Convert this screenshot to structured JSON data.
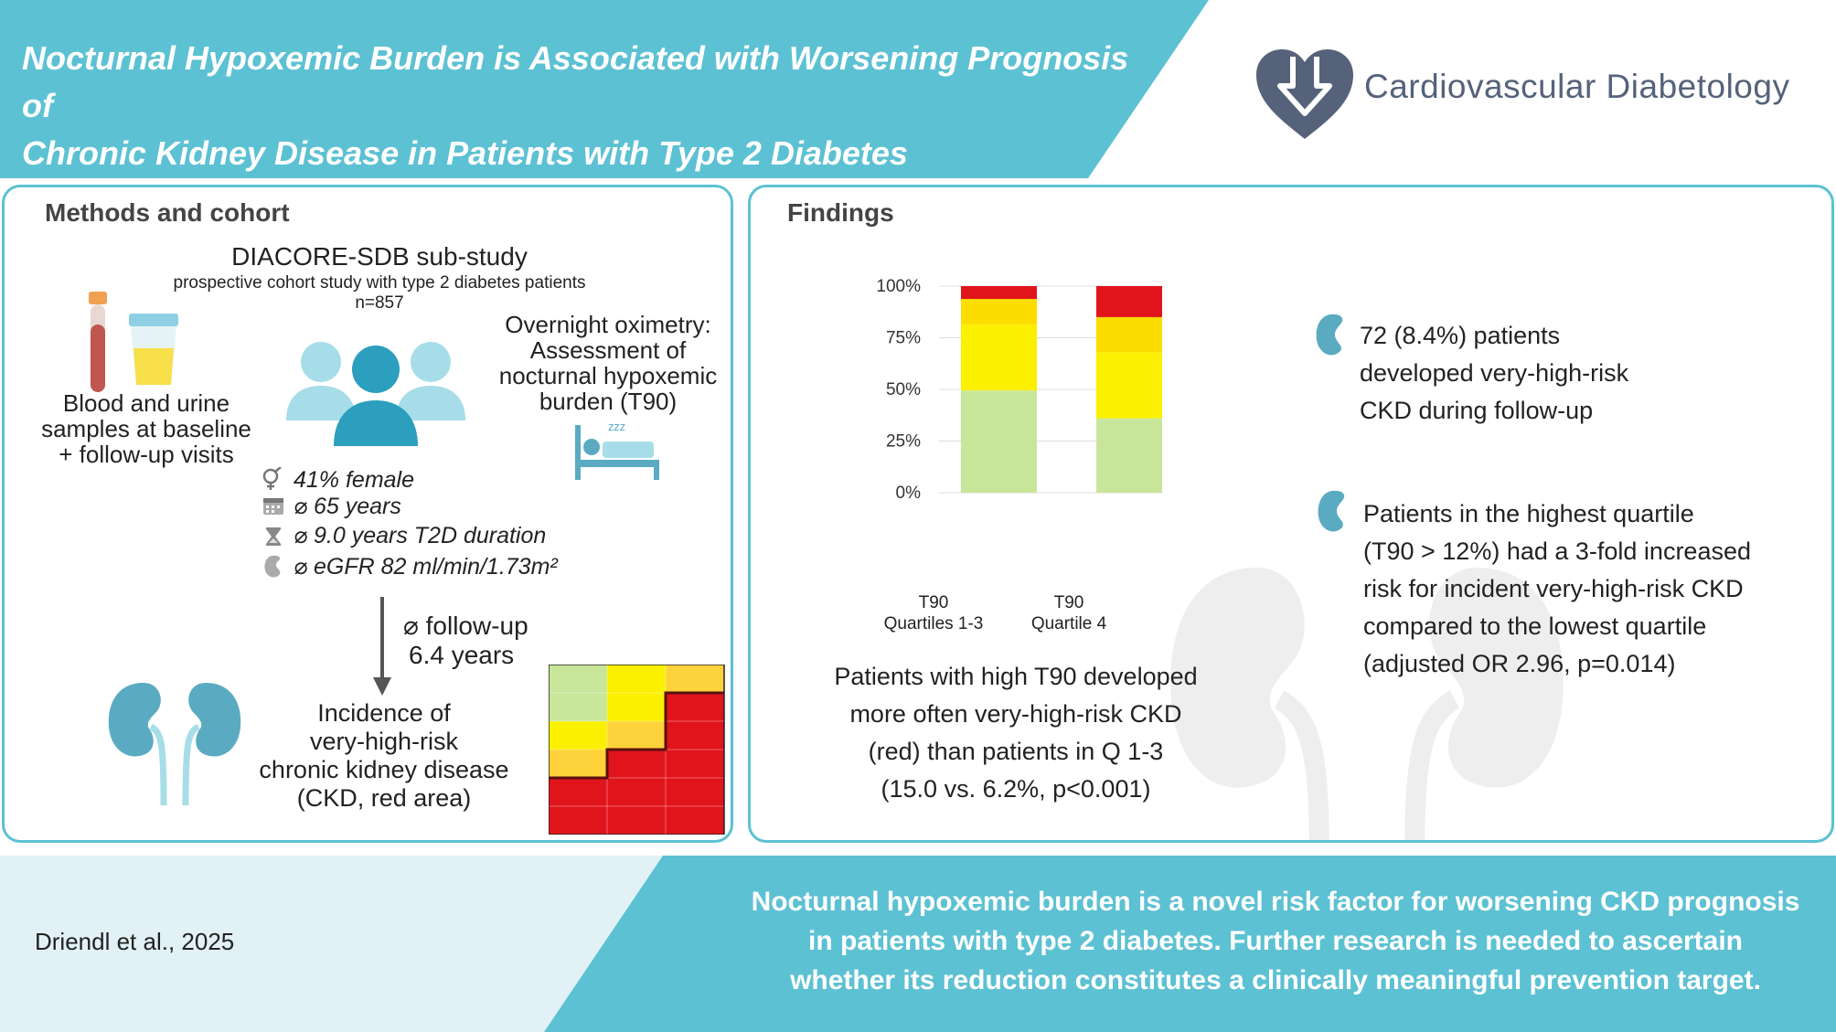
{
  "header": {
    "title_line1": "Nocturnal Hypoxemic Burden is Associated with Worsening Prognosis of",
    "title_line2": "Chronic Kidney Disease in Patients with Type 2 Diabetes",
    "journal": "Cardiovascular Diabetology"
  },
  "methods": {
    "heading": "Methods and cohort",
    "study_name": "DIACORE-SDB sub-study",
    "study_desc": "prospective cohort study with type 2 diabetes patients",
    "n": "n=857",
    "samples": [
      "Blood and urine",
      "samples at baseline",
      "+ follow-up visits"
    ],
    "oximetry": [
      "Overnight oximetry:",
      "Assessment of",
      "nocturnal hypoxemic",
      "burden (T90)"
    ],
    "stats": [
      "41% female",
      "⌀  65 years",
      "⌀ 9.0 years T2D duration",
      "⌀ eGFR 82 ml/min/1.73m²"
    ],
    "followup": [
      "⌀ follow-up",
      "6.4 years"
    ],
    "incidence": [
      "Incidence of",
      "very-high-risk",
      "chronic kidney disease",
      "(CKD, red area)"
    ]
  },
  "findings": {
    "heading": "Findings",
    "chart_caption": [
      "Patients with high T90 developed",
      "more often very-high-risk CKD",
      "(red) than patients in Q 1-3",
      "(15.0 vs. 6.2%, p<0.001)"
    ],
    "finding1": [
      "72 (8.4%) patients",
      "developed very-high-risk",
      "CKD during follow-up"
    ],
    "finding2": [
      "Patients in the highest quartile",
      "(T90 > 12%) had a 3-fold increased",
      "risk for incident very-high-risk CKD",
      "compared to the lowest quartile",
      "(adjusted OR 2.96, p=0.014)"
    ]
  },
  "chart_data": {
    "type": "bar",
    "stacked": true,
    "categories": [
      "T90\nQuartiles 1-3",
      "T90\nQuartile 4"
    ],
    "category_lines": [
      [
        "T90",
        "Quartiles 1-3"
      ],
      [
        "T90",
        "Quartile 4"
      ]
    ],
    "y_ticks": [
      "0%",
      "25%",
      "50%",
      "75%",
      "100%"
    ],
    "ylim": [
      0,
      100
    ],
    "series": [
      {
        "color": "#c8e69a",
        "values": [
          49.5,
          36.0
        ]
      },
      {
        "color": "#fbf000",
        "values": [
          32.0,
          32.0
        ]
      },
      {
        "color": "#fddc00",
        "values": [
          12.3,
          17.0
        ]
      },
      {
        "color": "#e0141b",
        "values": [
          6.2,
          15.0
        ]
      }
    ]
  },
  "footer": {
    "citation": "Driendl et al., 2025",
    "conclusion": [
      "Nocturnal hypoxemic burden is a novel risk factor for worsening CKD prognosis",
      "in patients with type 2 diabetes. Further research is needed to ascertain",
      "whether its reduction constitutes a clinically meaningful prevention target."
    ]
  },
  "colors": {
    "accent": "#5cc1d3",
    "footer_light": "#e2f1f5",
    "logo": "#55627a",
    "kidney": "#5aabc2",
    "people_light": "#a6dde8",
    "people_dark": "#2b9fbd"
  }
}
